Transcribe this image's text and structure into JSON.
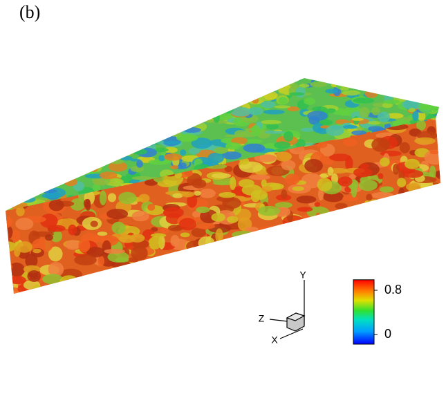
{
  "panel_label": "(b)",
  "axes_triad": {
    "y": "Y",
    "z": "Z",
    "x": "X"
  },
  "colorbar": {
    "lim": [
      -0.175,
      0.99
    ],
    "ticks": [
      0,
      0.8
    ]
  }
}
